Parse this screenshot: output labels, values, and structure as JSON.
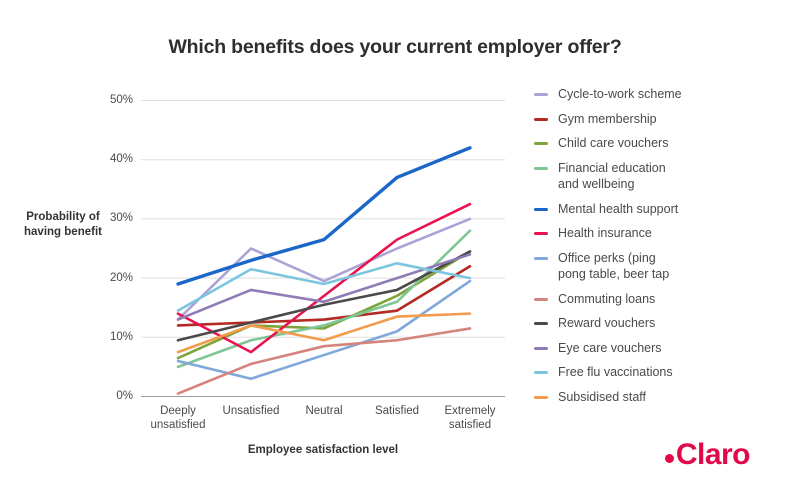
{
  "title": "Which benefits does your current employer offer?",
  "logo": {
    "text": "Claro",
    "color": "#E2094A"
  },
  "chart_data": {
    "type": "line",
    "categories": [
      "Deeply unsatisfied",
      "Unsatisfied",
      "Neutral",
      "Satisfied",
      "Extremely satisfied"
    ],
    "xlabel": "Employee satisfaction level",
    "ylabel": "Probability of\nhaving benefit",
    "y_ticks": [
      "50%",
      "40%",
      "30%",
      "20%",
      "10%",
      "0%"
    ],
    "ylim": [
      0,
      50
    ],
    "grid": "horizontal-only",
    "legend_position": "right",
    "series": [
      {
        "name": "Cycle-to-work scheme",
        "color": "#ABA3D6",
        "values": [
          13,
          25,
          19.5,
          25,
          30
        ]
      },
      {
        "name": "Gym membership",
        "color": "#B22A22",
        "values": [
          12,
          12.5,
          13,
          14.5,
          22
        ]
      },
      {
        "name": "Child care vouchers",
        "color": "#7FA33B",
        "values": [
          6.5,
          12,
          11.5,
          17,
          24.5
        ]
      },
      {
        "name": "Financial education and wellbeing",
        "legend_label": "Financial education\nand wellbeing",
        "color": "#7FC694",
        "values": [
          5,
          9.5,
          12,
          16,
          28
        ]
      },
      {
        "name": "Mental health support",
        "color": "#1B66C9",
        "thick": true,
        "values": [
          19,
          23,
          26.5,
          37,
          42
        ]
      },
      {
        "name": "Health insurance",
        "color": "#E8134F",
        "values": [
          14,
          7.5,
          17,
          26.5,
          32.5
        ]
      },
      {
        "name": "Office perks (ping pong table, beer tap",
        "legend_label": "Office perks (ping\npong table, beer tap",
        "color": "#7FA8D9",
        "values": [
          6,
          3,
          7,
          11,
          19.5
        ]
      },
      {
        "name": "Commuting loans",
        "color": "#D4847C",
        "values": [
          0.5,
          5.5,
          8.5,
          9.5,
          11.5
        ]
      },
      {
        "name": "Reward vouchers",
        "color": "#4A4A4A",
        "values": [
          9.5,
          12.5,
          15.5,
          18,
          24.5
        ]
      },
      {
        "name": "Eye care vouchers",
        "color": "#8F7BB5",
        "values": [
          13,
          18,
          16,
          20,
          24
        ]
      },
      {
        "name": "Free flu vaccinations",
        "color": "#7CC5DF",
        "values": [
          14.5,
          21.5,
          19,
          22.5,
          20
        ]
      },
      {
        "name": "Subsidised staff",
        "color": "#F29B4B",
        "values": [
          7.5,
          12,
          9.5,
          13.5,
          14
        ]
      }
    ]
  }
}
